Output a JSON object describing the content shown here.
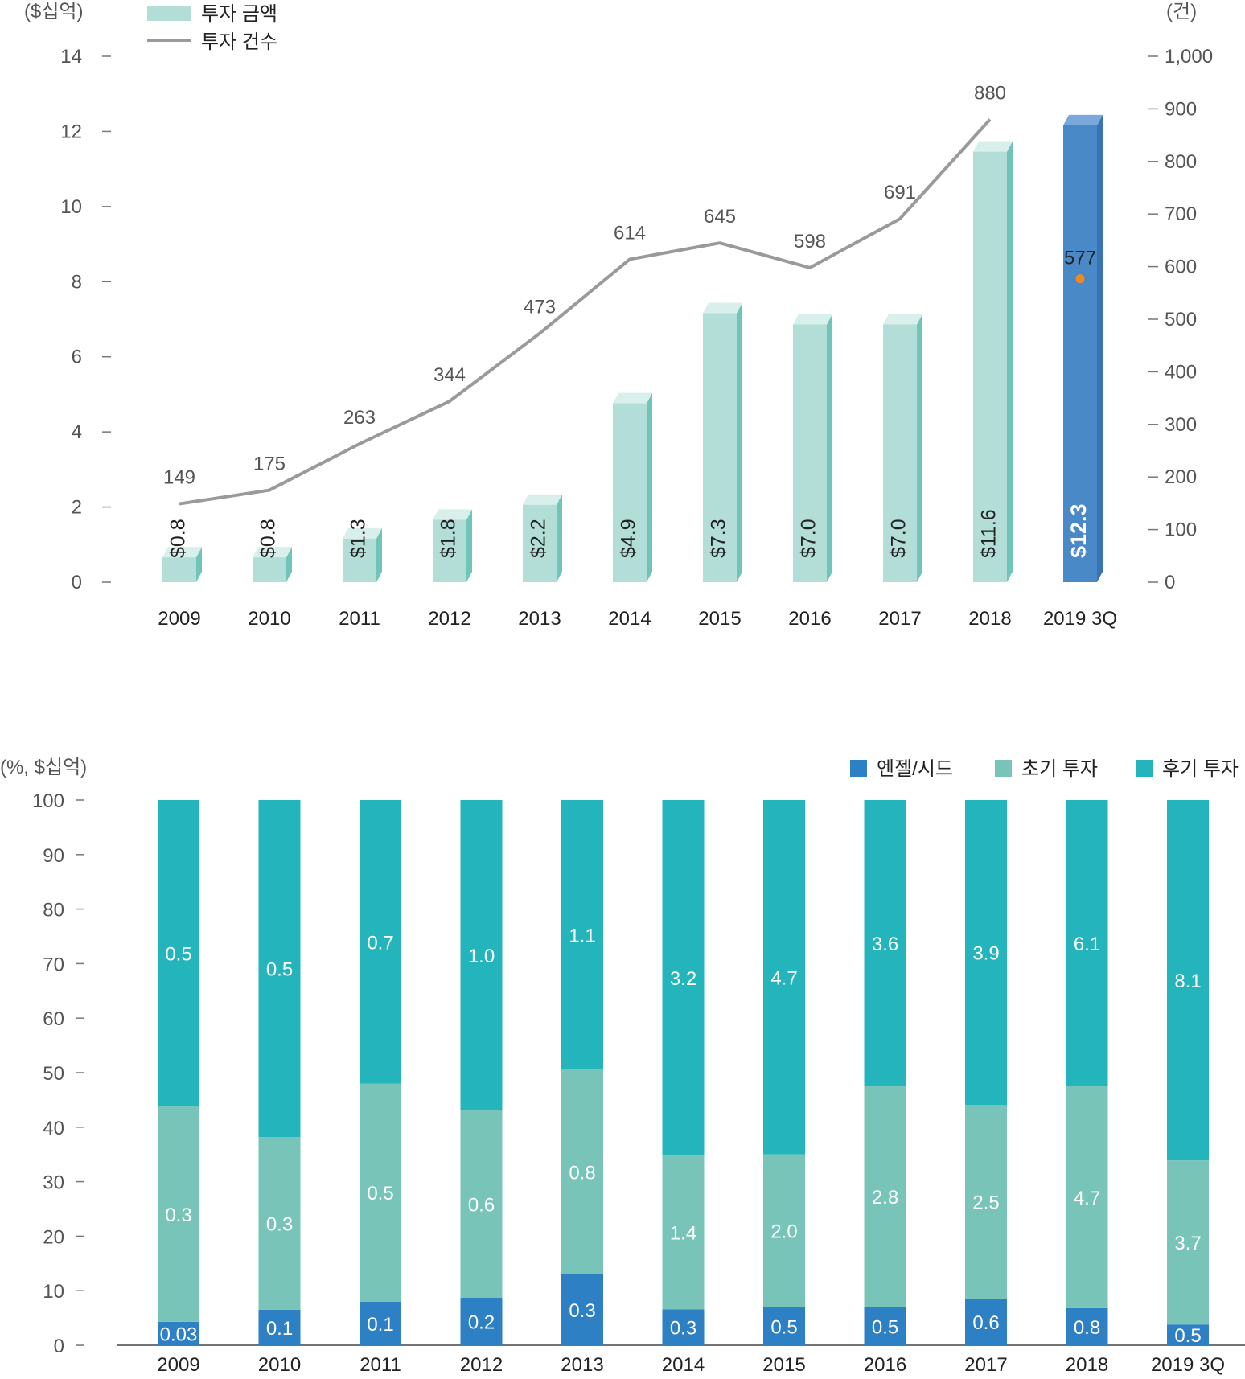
{
  "colors": {
    "bar_light": "#b3ddd7",
    "bar_light_top": "#d9efec",
    "bar_light_side": "#6fc6b8",
    "bar_highlight": "#4a89c8",
    "bar_highlight_top": "#7aa7dc",
    "bar_highlight_side": "#3a73b4",
    "line": "#9a9a9a",
    "dot": "#f08a1c",
    "angel_seed": "#2e80c4",
    "early": "#78c4b8",
    "late": "#24b4bc",
    "axis_text": "#555555",
    "label_text": "#222222"
  },
  "chart_data": [
    {
      "type": "bar",
      "title": "",
      "y_unit_left": "($십억)",
      "y_unit_right": "(건)",
      "legend": [
        {
          "label": "투자 금액",
          "kind": "bar"
        },
        {
          "label": "투자 건수",
          "kind": "line"
        }
      ],
      "categories": [
        "2009",
        "2010",
        "2011",
        "2012",
        "2013",
        "2014",
        "2015",
        "2016",
        "2017",
        "2018",
        "2019 3Q"
      ],
      "series": [
        {
          "name": "투자 금액",
          "axis": "left",
          "values": [
            0.8,
            0.8,
            1.3,
            1.8,
            2.2,
            4.9,
            7.3,
            7.0,
            7.0,
            11.6,
            12.3
          ],
          "labels": [
            "$0.8",
            "$0.8",
            "$1.3",
            "$1.8",
            "$2.2",
            "$4.9",
            "$7.3",
            "$7.0",
            "$7.0",
            "$11.6",
            "$12.3"
          ],
          "highlight_index": 10
        },
        {
          "name": "투자 건수",
          "axis": "right",
          "values": [
            149,
            175,
            263,
            344,
            473,
            614,
            645,
            598,
            691,
            880,
            577
          ],
          "labels": [
            "149",
            "175",
            "263",
            "344",
            "473",
            "614",
            "645",
            "598",
            "691",
            "880",
            "577"
          ],
          "line_points": 10,
          "last_as_point": true
        }
      ],
      "ylim_left": [
        0,
        14
      ],
      "yticks_left": [
        "0",
        "2",
        "4",
        "6",
        "8",
        "10",
        "12",
        "14"
      ],
      "ylim_right": [
        0,
        1000
      ],
      "yticks_right": [
        "0",
        "100",
        "200",
        "300",
        "400",
        "500",
        "600",
        "700",
        "800",
        "900",
        "1,000"
      ]
    },
    {
      "type": "bar",
      "stacked": "percent",
      "title": "",
      "y_unit": "(%, $십억)",
      "categories": [
        "2009",
        "2010",
        "2011",
        "2012",
        "2013",
        "2014",
        "2015",
        "2016",
        "2017",
        "2018",
        "2019 3Q"
      ],
      "series": [
        {
          "name": "엔젤/시드",
          "share_pct": [
            4.3,
            6.5,
            8.0,
            8.7,
            13.0,
            6.6,
            7.0,
            7.0,
            8.5,
            6.8,
            3.8
          ],
          "labels": [
            "0.03",
            "0.1",
            "0.1",
            "0.2",
            "0.3",
            "0.3",
            "0.5",
            "0.5",
            "0.6",
            "0.8",
            "0.5"
          ]
        },
        {
          "name": "초기 투자",
          "share_pct": [
            39.5,
            31.7,
            40.0,
            34.4,
            37.6,
            28.2,
            28.0,
            40.5,
            35.6,
            40.7,
            30.1
          ],
          "labels": [
            "0.3",
            "0.3",
            "0.5",
            "0.6",
            "0.8",
            "1.4",
            "2.0",
            "2.8",
            "2.5",
            "4.7",
            "3.7"
          ]
        },
        {
          "name": "후기 투자",
          "share_pct": [
            56.2,
            61.8,
            52.0,
            56.9,
            49.4,
            65.2,
            65.0,
            52.5,
            55.9,
            52.5,
            66.1
          ],
          "labels": [
            "0.5",
            "0.5",
            "0.7",
            "1.0",
            "1.1",
            "3.2",
            "4.7",
            "3.6",
            "3.9",
            "6.1",
            "8.1"
          ]
        }
      ],
      "ylim": [
        0,
        100
      ],
      "yticks": [
        "0",
        "10",
        "20",
        "30",
        "40",
        "50",
        "60",
        "70",
        "80",
        "90",
        "100"
      ]
    }
  ]
}
